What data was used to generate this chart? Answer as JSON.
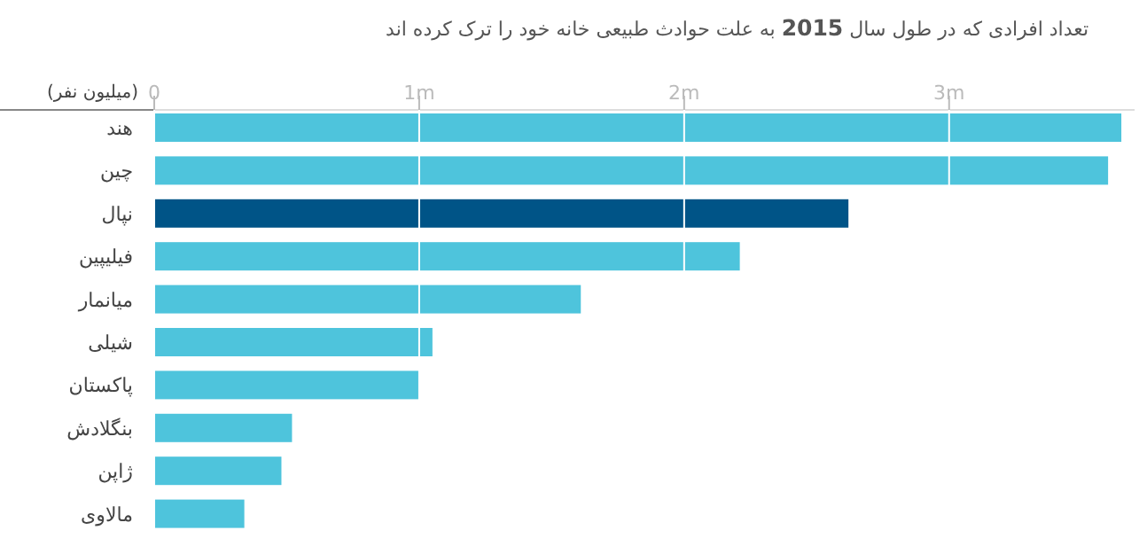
{
  "chart_data": {
    "type": "bar",
    "orientation": "horizontal",
    "title": "تعداد افرادی که در طول سال **2015** به علت حوادث طبیعی خانه خود را ترک کرده اند",
    "xlabel": "(میلیون نفر)",
    "categories": [
      "هند",
      "چین",
      "نپال",
      "فیلیپین",
      "میانمار",
      "شیلی",
      "پاکستان",
      "بنگلادش",
      "ژاپن",
      "مالاوی"
    ],
    "values": [
      3.65,
      3.6,
      2.62,
      2.21,
      1.61,
      1.05,
      1.0,
      0.52,
      0.48,
      0.34
    ],
    "colors": [
      "#4ec4dc",
      "#4ec4dc",
      "#005487",
      "#4ec4dc",
      "#4ec4dc",
      "#4ec4dc",
      "#4ec4dc",
      "#4ec4dc",
      "#4ec4dc",
      "#4ec4dc"
    ],
    "xlim": [
      0,
      3.7
    ],
    "xticks": [
      0,
      {
        "value": 1,
        "label": "1m"
      },
      {
        "value": 2,
        "label": "2m"
      },
      {
        "value": 3,
        "label": "3m"
      }
    ],
    "grid": "x"
  }
}
